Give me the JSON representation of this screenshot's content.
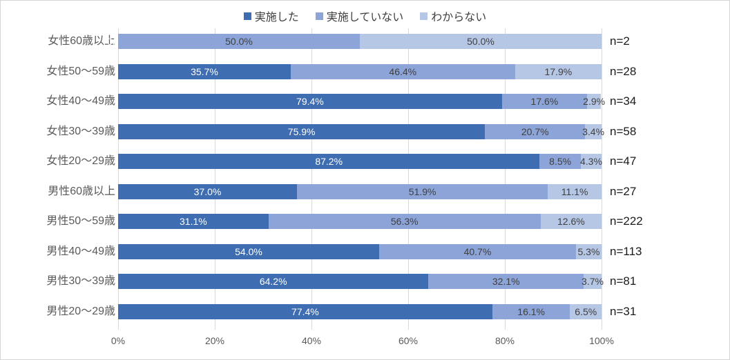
{
  "chart_data": {
    "type": "bar",
    "orientation": "horizontal",
    "stacked": true,
    "title": "",
    "legend": [
      "実施した",
      "実施していない",
      "わからない"
    ],
    "legend_position": "top",
    "categories": [
      "女性60歳以上",
      "女性50〜59歳",
      "女性40〜49歳",
      "女性30〜39歳",
      "女性20〜29歳",
      "男性60歳以上",
      "男性50〜59歳",
      "男性40〜49歳",
      "男性30〜39歳",
      "男性20〜29歳"
    ],
    "series": [
      {
        "name": "実施した",
        "values": [
          0.0,
          35.7,
          79.4,
          75.9,
          87.2,
          37.0,
          31.1,
          54.0,
          64.2,
          77.4
        ]
      },
      {
        "name": "実施していない",
        "values": [
          50.0,
          46.4,
          17.6,
          20.7,
          8.5,
          51.9,
          56.3,
          40.7,
          32.1,
          16.1
        ]
      },
      {
        "name": "わからない",
        "values": [
          50.0,
          17.9,
          2.9,
          3.4,
          4.3,
          11.1,
          12.6,
          5.3,
          3.7,
          6.5
        ]
      }
    ],
    "data_labels": [
      [
        "0.0%",
        "50.0%",
        "50.0%"
      ],
      [
        "35.7%",
        "46.4%",
        "17.9%"
      ],
      [
        "79.4%",
        "17.6%",
        "2.9%"
      ],
      [
        "75.9%",
        "20.7%",
        "3.4%"
      ],
      [
        "87.2%",
        "8.5%",
        "4.3%"
      ],
      [
        "37.0%",
        "51.9%",
        "11.1%"
      ],
      [
        "31.1%",
        "56.3%",
        "12.6%"
      ],
      [
        "54.0%",
        "40.7%",
        "5.3%"
      ],
      [
        "64.2%",
        "32.1%",
        "3.7%"
      ],
      [
        "77.4%",
        "16.1%",
        "6.5%"
      ]
    ],
    "n_labels": [
      "n=2",
      "n=28",
      "n=34",
      "n=58",
      "n=47",
      "n=27",
      "n=222",
      "n=113",
      "n=81",
      "n=31"
    ],
    "x_ticks": [
      "0%",
      "20%",
      "40%",
      "60%",
      "80%",
      "100%"
    ],
    "xlim": [
      0,
      100
    ],
    "grid": true,
    "colors": {
      "series": [
        "#3E6DB1",
        "#8CA4D7",
        "#B6C6E5"
      ],
      "gridline": "#D9D9D9",
      "label_on_dark": "#FFFFFF",
      "label_on_light": "#3F3F3F",
      "category_text": "#595959",
      "tick_text": "#595959",
      "n_text": "#1A1A1A",
      "legend_text": "#404040"
    }
  }
}
